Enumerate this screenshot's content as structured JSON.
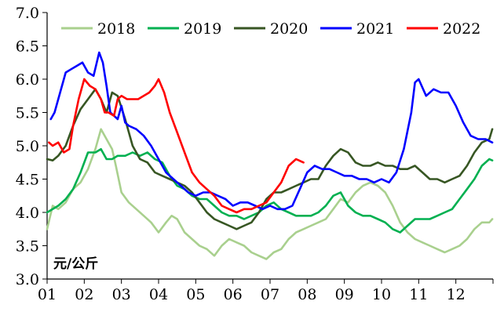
{
  "chart_data": {
    "type": "line",
    "ylabel": "元/公斤",
    "ylim": [
      3.0,
      7.0
    ],
    "yticks": [
      "7.0",
      "6.5",
      "6.0",
      "5.5",
      "5.0",
      "4.5",
      "4.0",
      "3.5",
      "3.0"
    ],
    "ytick_values": [
      7.0,
      6.5,
      6.0,
      5.5,
      5.0,
      4.5,
      4.0,
      3.5,
      3.0
    ],
    "xlim": [
      1,
      13
    ],
    "xticks": [
      "01",
      "02",
      "03",
      "04",
      "05",
      "06",
      "07",
      "08",
      "09",
      "10",
      "11",
      "12"
    ],
    "xtick_values": [
      1,
      2,
      3,
      4,
      5,
      6,
      7,
      8,
      9,
      10,
      11,
      12
    ],
    "grid": false,
    "legend": "top",
    "series": [
      {
        "name": "2018",
        "color": "#a9d08e",
        "x": [
          1.0,
          1.15,
          1.3,
          1.5,
          1.7,
          1.9,
          2.1,
          2.3,
          2.45,
          2.6,
          2.75,
          2.85,
          3.0,
          3.2,
          3.4,
          3.6,
          3.8,
          4.0,
          4.2,
          4.35,
          4.5,
          4.7,
          4.9,
          5.1,
          5.3,
          5.5,
          5.7,
          5.9,
          6.1,
          6.3,
          6.5,
          6.7,
          6.9,
          7.1,
          7.3,
          7.5,
          7.7,
          7.9,
          8.1,
          8.3,
          8.5,
          8.7,
          8.9,
          9.1,
          9.3,
          9.5,
          9.7,
          9.9,
          10.1,
          10.3,
          10.5,
          10.7,
          10.9,
          11.1,
          11.3,
          11.5,
          11.7,
          11.9,
          12.1,
          12.3,
          12.5,
          12.7,
          12.9,
          12.98
        ],
        "values": [
          3.75,
          4.1,
          4.05,
          4.15,
          4.35,
          4.45,
          4.65,
          4.95,
          5.25,
          5.1,
          4.95,
          4.7,
          4.3,
          4.15,
          4.05,
          3.95,
          3.85,
          3.7,
          3.85,
          3.95,
          3.9,
          3.7,
          3.6,
          3.5,
          3.45,
          3.35,
          3.5,
          3.6,
          3.55,
          3.5,
          3.4,
          3.35,
          3.3,
          3.4,
          3.45,
          3.6,
          3.7,
          3.75,
          3.8,
          3.85,
          3.9,
          4.05,
          4.2,
          4.15,
          4.3,
          4.4,
          4.45,
          4.4,
          4.3,
          4.1,
          3.85,
          3.7,
          3.6,
          3.55,
          3.5,
          3.45,
          3.4,
          3.45,
          3.5,
          3.6,
          3.75,
          3.85,
          3.85,
          3.9
        ]
      },
      {
        "name": "2019",
        "color": "#00b050",
        "x": [
          1.0,
          1.15,
          1.3,
          1.5,
          1.7,
          1.9,
          2.1,
          2.3,
          2.45,
          2.6,
          2.75,
          2.9,
          3.1,
          3.3,
          3.5,
          3.7,
          3.9,
          4.1,
          4.3,
          4.5,
          4.7,
          4.9,
          5.1,
          5.3,
          5.5,
          5.7,
          5.9,
          6.1,
          6.3,
          6.5,
          6.7,
          6.9,
          7.1,
          7.3,
          7.5,
          7.7,
          7.9,
          8.1,
          8.3,
          8.5,
          8.7,
          8.9,
          9.1,
          9.3,
          9.5,
          9.7,
          9.9,
          10.1,
          10.3,
          10.5,
          10.7,
          10.9,
          11.1,
          11.3,
          11.5,
          11.7,
          11.9,
          12.1,
          12.3,
          12.5,
          12.7,
          12.9,
          12.98
        ],
        "values": [
          4.0,
          4.05,
          4.1,
          4.2,
          4.35,
          4.6,
          4.9,
          4.9,
          4.95,
          4.8,
          4.8,
          4.85,
          4.85,
          4.9,
          4.85,
          4.9,
          4.8,
          4.75,
          4.55,
          4.4,
          4.35,
          4.25,
          4.2,
          4.2,
          4.1,
          4.0,
          3.95,
          3.95,
          3.9,
          3.95,
          4.0,
          4.1,
          4.15,
          4.05,
          4.0,
          3.95,
          3.95,
          3.95,
          4.0,
          4.1,
          4.25,
          4.3,
          4.1,
          4.0,
          3.95,
          3.95,
          3.9,
          3.85,
          3.75,
          3.7,
          3.8,
          3.9,
          3.9,
          3.9,
          3.95,
          4.0,
          4.05,
          4.2,
          4.35,
          4.5,
          4.7,
          4.8,
          4.78
        ]
      },
      {
        "name": "2020",
        "color": "#375623",
        "x": [
          1.0,
          1.15,
          1.3,
          1.5,
          1.7,
          1.9,
          2.1,
          2.3,
          2.45,
          2.6,
          2.75,
          2.9,
          3.1,
          3.3,
          3.5,
          3.7,
          3.9,
          4.1,
          4.3,
          4.5,
          4.7,
          4.9,
          5.1,
          5.3,
          5.5,
          5.7,
          5.9,
          6.1,
          6.3,
          6.5,
          6.7,
          6.9,
          7.1,
          7.3,
          7.5,
          7.7,
          7.9,
          8.1,
          8.3,
          8.5,
          8.7,
          8.9,
          9.1,
          9.3,
          9.5,
          9.7,
          9.9,
          10.1,
          10.3,
          10.5,
          10.7,
          10.9,
          11.1,
          11.3,
          11.5,
          11.7,
          11.9,
          12.1,
          12.3,
          12.5,
          12.7,
          12.9,
          12.98
        ],
        "values": [
          4.8,
          4.78,
          4.85,
          5.0,
          5.3,
          5.55,
          5.7,
          5.85,
          5.7,
          5.5,
          5.8,
          5.75,
          5.4,
          5.0,
          4.8,
          4.75,
          4.6,
          4.55,
          4.5,
          4.45,
          4.4,
          4.3,
          4.15,
          4.0,
          3.9,
          3.85,
          3.8,
          3.75,
          3.8,
          3.85,
          4.0,
          4.2,
          4.3,
          4.3,
          4.35,
          4.4,
          4.45,
          4.5,
          4.5,
          4.7,
          4.85,
          4.95,
          4.9,
          4.75,
          4.7,
          4.7,
          4.75,
          4.7,
          4.7,
          4.65,
          4.65,
          4.7,
          4.6,
          4.5,
          4.5,
          4.45,
          4.5,
          4.55,
          4.7,
          4.9,
          5.05,
          5.1,
          5.25
        ]
      },
      {
        "name": "2021",
        "color": "#0000ff",
        "x": [
          1.1,
          1.2,
          1.35,
          1.5,
          1.65,
          1.8,
          1.95,
          2.1,
          2.25,
          2.4,
          2.5,
          2.6,
          2.7,
          2.8,
          2.9,
          3.0,
          3.1,
          3.2,
          3.4,
          3.6,
          3.8,
          4.0,
          4.2,
          4.4,
          4.6,
          4.8,
          5.0,
          5.2,
          5.4,
          5.6,
          5.8,
          6.0,
          6.2,
          6.4,
          6.6,
          6.8,
          7.0,
          7.2,
          7.4,
          7.6,
          7.8,
          8.0,
          8.2,
          8.4,
          8.6,
          8.8,
          9.0,
          9.2,
          9.4,
          9.6,
          9.8,
          10.0,
          10.2,
          10.4,
          10.6,
          10.8,
          10.9,
          11.0,
          11.2,
          11.4,
          11.6,
          11.8,
          12.0,
          12.2,
          12.4,
          12.6,
          12.8,
          12.98
        ],
        "values": [
          5.4,
          5.5,
          5.8,
          6.1,
          6.15,
          6.2,
          6.25,
          6.1,
          6.05,
          6.4,
          6.25,
          5.9,
          5.5,
          5.45,
          5.4,
          5.6,
          5.35,
          5.3,
          5.25,
          5.15,
          5.0,
          4.8,
          4.6,
          4.5,
          4.4,
          4.3,
          4.25,
          4.3,
          4.3,
          4.25,
          4.2,
          4.1,
          4.15,
          4.15,
          4.1,
          4.05,
          4.1,
          4.05,
          4.05,
          4.1,
          4.35,
          4.6,
          4.7,
          4.65,
          4.65,
          4.6,
          4.55,
          4.55,
          4.5,
          4.5,
          4.45,
          4.5,
          4.45,
          4.6,
          4.95,
          5.5,
          5.95,
          6.0,
          5.75,
          5.85,
          5.8,
          5.8,
          5.6,
          5.35,
          5.15,
          5.1,
          5.1,
          5.05
        ]
      },
      {
        "name": "2022",
        "color": "#ff0000",
        "x": [
          1.05,
          1.15,
          1.3,
          1.45,
          1.6,
          1.7,
          1.85,
          2.0,
          2.15,
          2.3,
          2.45,
          2.55,
          2.65,
          2.8,
          2.9,
          3.0,
          3.15,
          3.3,
          3.45,
          3.6,
          3.75,
          3.9,
          4.0,
          4.15,
          4.3,
          4.5,
          4.7,
          4.9,
          5.1,
          5.3,
          5.5,
          5.7,
          5.9,
          6.1,
          6.3,
          6.5,
          6.7,
          6.9,
          7.1,
          7.3,
          7.5,
          7.7,
          7.9
        ],
        "values": [
          5.05,
          5.0,
          5.05,
          4.9,
          4.95,
          5.3,
          5.7,
          6.0,
          5.9,
          5.85,
          5.7,
          5.5,
          5.5,
          5.45,
          5.7,
          5.75,
          5.7,
          5.7,
          5.7,
          5.75,
          5.8,
          5.9,
          6.0,
          5.8,
          5.5,
          5.2,
          4.9,
          4.6,
          4.45,
          4.35,
          4.25,
          4.1,
          4.05,
          4.0,
          4.05,
          4.05,
          4.1,
          4.15,
          4.3,
          4.45,
          4.7,
          4.8,
          4.75
        ]
      }
    ]
  }
}
